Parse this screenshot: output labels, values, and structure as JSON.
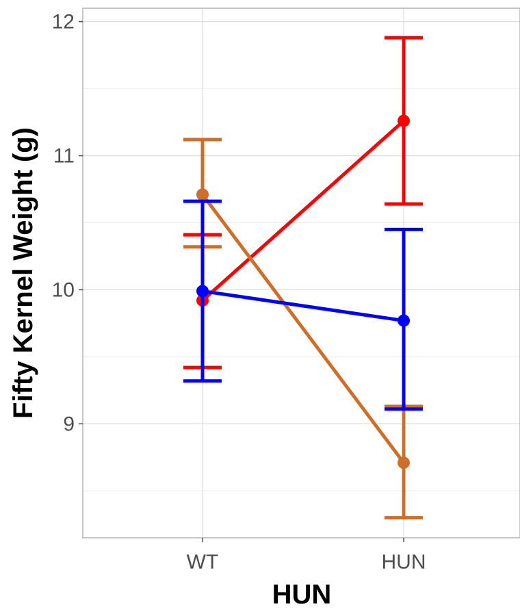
{
  "chart_data": {
    "type": "line",
    "title": "",
    "xlabel": "HUN",
    "ylabel": "Fifty Kernel Weight (g)",
    "categories": [
      "WT",
      "HUN"
    ],
    "ylim": [
      8.15,
      12.1
    ],
    "yticks": [
      9,
      10,
      11,
      12
    ],
    "yticks_minor": [
      8.5,
      9.5,
      10.5,
      11.5
    ],
    "grid": true,
    "legend": "none",
    "series": [
      {
        "color": "#ff0000",
        "values": [
          9.92,
          11.26
        ],
        "err_low": [
          9.42,
          10.64
        ],
        "err_high": [
          10.41,
          11.88
        ]
      },
      {
        "color": "#cc6f2a",
        "values": [
          10.71,
          8.71
        ],
        "err_low": [
          10.32,
          8.3
        ],
        "err_high": [
          11.12,
          9.13
        ]
      },
      {
        "color": "#0000ff",
        "values": [
          9.99,
          9.77
        ],
        "err_low": [
          9.32,
          9.11
        ],
        "err_high": [
          10.66,
          10.45
        ]
      }
    ]
  }
}
